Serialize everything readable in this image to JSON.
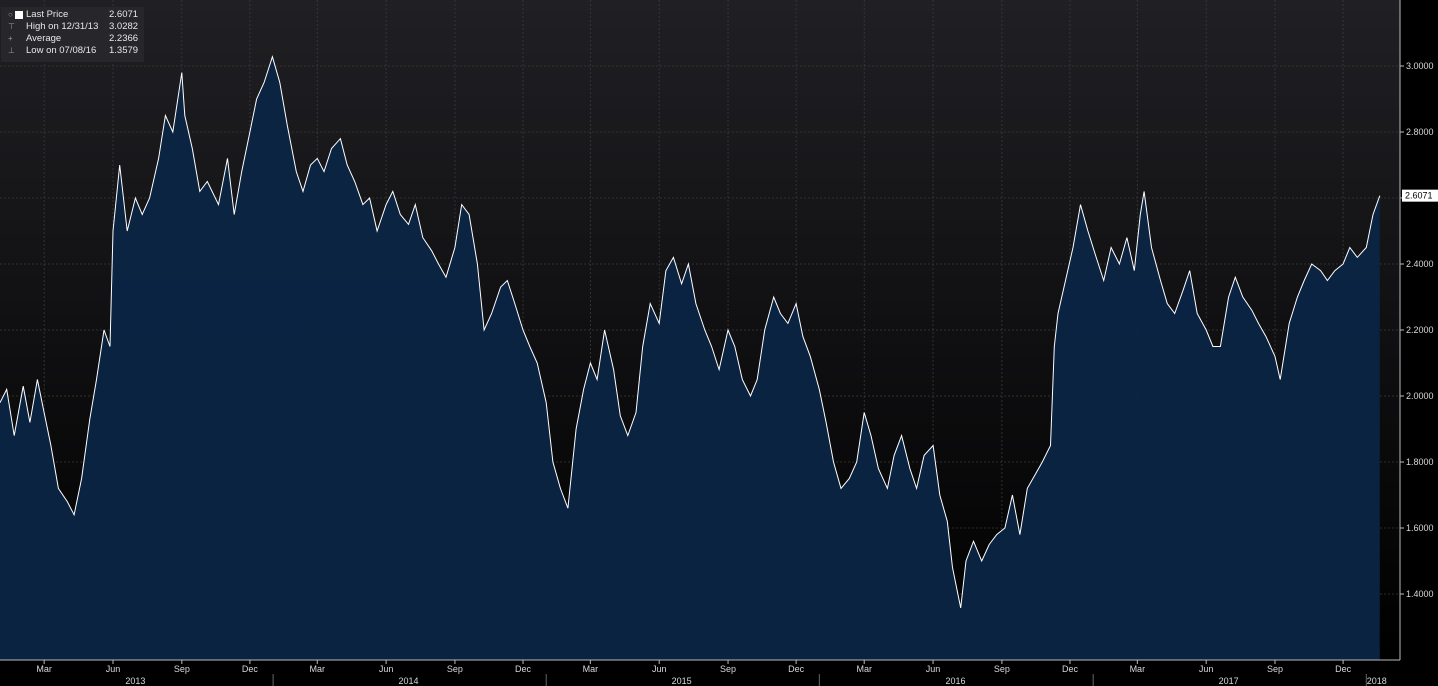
{
  "legend": {
    "last_label": "Last Price",
    "last_value": "2.6071",
    "high_label": "High on 12/31/13",
    "high_value": "3.0282",
    "avg_label": "Average",
    "avg_value": "2.2366",
    "low_label": "Low on 07/08/16",
    "low_value": "1.3579"
  },
  "last_price_tag": "2.6071",
  "colors": {
    "background": "#000000",
    "line": "#ffffff",
    "area": "#0b2545",
    "grid": "#3a3a3a",
    "tag_bg": "#ffffff"
  },
  "chart_data": {
    "type": "area",
    "title": "",
    "xlabel": "",
    "ylabel": "",
    "ylim": [
      1.2,
      3.2
    ],
    "grid": true,
    "legend_position": "top-left",
    "y_ticks": [
      "1.4000",
      "1.6000",
      "1.8000",
      "2.0000",
      "2.2000",
      "2.4000",
      "2.6000",
      "2.8000",
      "3.0000"
    ],
    "x_month_ticks": [
      {
        "label": "Mar",
        "date": "2013-03-01"
      },
      {
        "label": "Jun",
        "date": "2013-06-01"
      },
      {
        "label": "Sep",
        "date": "2013-09-01"
      },
      {
        "label": "Dec",
        "date": "2013-12-01"
      },
      {
        "label": "Mar",
        "date": "2014-03-01"
      },
      {
        "label": "Jun",
        "date": "2014-06-01"
      },
      {
        "label": "Sep",
        "date": "2014-09-01"
      },
      {
        "label": "Dec",
        "date": "2014-12-01"
      },
      {
        "label": "Mar",
        "date": "2015-03-01"
      },
      {
        "label": "Jun",
        "date": "2015-06-01"
      },
      {
        "label": "Sep",
        "date": "2015-09-01"
      },
      {
        "label": "Dec",
        "date": "2015-12-01"
      },
      {
        "label": "Mar",
        "date": "2016-03-01"
      },
      {
        "label": "Jun",
        "date": "2016-06-01"
      },
      {
        "label": "Sep",
        "date": "2016-09-01"
      },
      {
        "label": "Dec",
        "date": "2016-12-01"
      },
      {
        "label": "Mar",
        "date": "2017-03-01"
      },
      {
        "label": "Jun",
        "date": "2017-06-01"
      },
      {
        "label": "Sep",
        "date": "2017-09-01"
      },
      {
        "label": "Dec",
        "date": "2017-12-01"
      }
    ],
    "x_year_labels": [
      {
        "label": "2013",
        "date": "2013-07-01"
      },
      {
        "label": "2014",
        "date": "2014-07-01"
      },
      {
        "label": "2015",
        "date": "2015-07-01"
      },
      {
        "label": "2016",
        "date": "2016-07-01"
      },
      {
        "label": "2017",
        "date": "2017-07-01"
      },
      {
        "label": "2018",
        "date": "2018-01-15"
      }
    ],
    "x_range": [
      "2013-01-01",
      "2018-01-22"
    ],
    "series": [
      {
        "points": [
          [
            "2013-01-01",
            1.98
          ],
          [
            "2013-01-10",
            2.02
          ],
          [
            "2013-01-20",
            1.88
          ],
          [
            "2013-02-01",
            2.03
          ],
          [
            "2013-02-10",
            1.92
          ],
          [
            "2013-02-20",
            2.05
          ],
          [
            "2013-03-01",
            1.95
          ],
          [
            "2013-03-10",
            1.85
          ],
          [
            "2013-03-20",
            1.72
          ],
          [
            "2013-04-01",
            1.68
          ],
          [
            "2013-04-10",
            1.64
          ],
          [
            "2013-04-20",
            1.75
          ],
          [
            "2013-05-01",
            1.93
          ],
          [
            "2013-05-10",
            2.05
          ],
          [
            "2013-05-20",
            2.2
          ],
          [
            "2013-05-28",
            2.15
          ],
          [
            "2013-06-01",
            2.5
          ],
          [
            "2013-06-10",
            2.7
          ],
          [
            "2013-06-20",
            2.5
          ],
          [
            "2013-07-01",
            2.6
          ],
          [
            "2013-07-10",
            2.55
          ],
          [
            "2013-07-20",
            2.6
          ],
          [
            "2013-08-01",
            2.72
          ],
          [
            "2013-08-10",
            2.85
          ],
          [
            "2013-08-20",
            2.8
          ],
          [
            "2013-09-01",
            2.98
          ],
          [
            "2013-09-05",
            2.85
          ],
          [
            "2013-09-15",
            2.75
          ],
          [
            "2013-09-25",
            2.62
          ],
          [
            "2013-10-05",
            2.65
          ],
          [
            "2013-10-20",
            2.58
          ],
          [
            "2013-11-01",
            2.72
          ],
          [
            "2013-11-10",
            2.55
          ],
          [
            "2013-11-20",
            2.68
          ],
          [
            "2013-12-01",
            2.8
          ],
          [
            "2013-12-10",
            2.9
          ],
          [
            "2013-12-20",
            2.95
          ],
          [
            "2013-12-31",
            3.0282
          ],
          [
            "2014-01-10",
            2.95
          ],
          [
            "2014-01-20",
            2.82
          ],
          [
            "2014-02-01",
            2.68
          ],
          [
            "2014-02-10",
            2.62
          ],
          [
            "2014-02-20",
            2.7
          ],
          [
            "2014-03-01",
            2.72
          ],
          [
            "2014-03-10",
            2.68
          ],
          [
            "2014-03-20",
            2.75
          ],
          [
            "2014-04-01",
            2.78
          ],
          [
            "2014-04-10",
            2.7
          ],
          [
            "2014-04-20",
            2.65
          ],
          [
            "2014-05-01",
            2.58
          ],
          [
            "2014-05-10",
            2.6
          ],
          [
            "2014-05-20",
            2.5
          ],
          [
            "2014-06-01",
            2.58
          ],
          [
            "2014-06-10",
            2.62
          ],
          [
            "2014-06-20",
            2.55
          ],
          [
            "2014-07-01",
            2.52
          ],
          [
            "2014-07-10",
            2.58
          ],
          [
            "2014-07-20",
            2.48
          ],
          [
            "2014-08-01",
            2.44
          ],
          [
            "2014-08-10",
            2.4
          ],
          [
            "2014-08-20",
            2.36
          ],
          [
            "2014-09-01",
            2.45
          ],
          [
            "2014-09-10",
            2.58
          ],
          [
            "2014-09-20",
            2.55
          ],
          [
            "2014-10-01",
            2.4
          ],
          [
            "2014-10-10",
            2.2
          ],
          [
            "2014-10-20",
            2.25
          ],
          [
            "2014-11-01",
            2.33
          ],
          [
            "2014-11-10",
            2.35
          ],
          [
            "2014-11-20",
            2.28
          ],
          [
            "2014-12-01",
            2.2
          ],
          [
            "2014-12-10",
            2.15
          ],
          [
            "2014-12-20",
            2.1
          ],
          [
            "2015-01-01",
            1.98
          ],
          [
            "2015-01-10",
            1.8
          ],
          [
            "2015-01-20",
            1.72
          ],
          [
            "2015-01-30",
            1.66
          ],
          [
            "2015-02-10",
            1.9
          ],
          [
            "2015-02-20",
            2.02
          ],
          [
            "2015-03-01",
            2.1
          ],
          [
            "2015-03-10",
            2.05
          ],
          [
            "2015-03-20",
            2.2
          ],
          [
            "2015-04-01",
            2.08
          ],
          [
            "2015-04-10",
            1.94
          ],
          [
            "2015-04-20",
            1.88
          ],
          [
            "2015-05-01",
            1.95
          ],
          [
            "2015-05-10",
            2.15
          ],
          [
            "2015-05-20",
            2.28
          ],
          [
            "2015-06-01",
            2.22
          ],
          [
            "2015-06-10",
            2.38
          ],
          [
            "2015-06-20",
            2.42
          ],
          [
            "2015-07-01",
            2.34
          ],
          [
            "2015-07-10",
            2.4
          ],
          [
            "2015-07-20",
            2.28
          ],
          [
            "2015-08-01",
            2.2
          ],
          [
            "2015-08-10",
            2.15
          ],
          [
            "2015-08-20",
            2.08
          ],
          [
            "2015-09-01",
            2.2
          ],
          [
            "2015-09-10",
            2.15
          ],
          [
            "2015-09-20",
            2.05
          ],
          [
            "2015-10-01",
            2.0
          ],
          [
            "2015-10-10",
            2.05
          ],
          [
            "2015-10-20",
            2.2
          ],
          [
            "2015-11-01",
            2.3
          ],
          [
            "2015-11-10",
            2.25
          ],
          [
            "2015-11-20",
            2.22
          ],
          [
            "2015-12-01",
            2.28
          ],
          [
            "2015-12-10",
            2.18
          ],
          [
            "2015-12-20",
            2.12
          ],
          [
            "2016-01-01",
            2.02
          ],
          [
            "2016-01-10",
            1.92
          ],
          [
            "2016-01-20",
            1.8
          ],
          [
            "2016-01-30",
            1.72
          ],
          [
            "2016-02-10",
            1.75
          ],
          [
            "2016-02-20",
            1.8
          ],
          [
            "2016-03-01",
            1.95
          ],
          [
            "2016-03-10",
            1.88
          ],
          [
            "2016-03-20",
            1.78
          ],
          [
            "2016-04-01",
            1.72
          ],
          [
            "2016-04-10",
            1.82
          ],
          [
            "2016-04-20",
            1.88
          ],
          [
            "2016-05-01",
            1.78
          ],
          [
            "2016-05-10",
            1.72
          ],
          [
            "2016-05-20",
            1.82
          ],
          [
            "2016-06-01",
            1.85
          ],
          [
            "2016-06-10",
            1.7
          ],
          [
            "2016-06-20",
            1.62
          ],
          [
            "2016-06-27",
            1.48
          ],
          [
            "2016-07-08",
            1.3579
          ],
          [
            "2016-07-15",
            1.5
          ],
          [
            "2016-07-25",
            1.56
          ],
          [
            "2016-08-05",
            1.5
          ],
          [
            "2016-08-15",
            1.55
          ],
          [
            "2016-08-25",
            1.58
          ],
          [
            "2016-09-05",
            1.6
          ],
          [
            "2016-09-15",
            1.7
          ],
          [
            "2016-09-25",
            1.58
          ],
          [
            "2016-10-05",
            1.72
          ],
          [
            "2016-10-15",
            1.76
          ],
          [
            "2016-10-25",
            1.8
          ],
          [
            "2016-11-05",
            1.85
          ],
          [
            "2016-11-10",
            2.15
          ],
          [
            "2016-11-15",
            2.25
          ],
          [
            "2016-11-25",
            2.35
          ],
          [
            "2016-12-05",
            2.45
          ],
          [
            "2016-12-15",
            2.58
          ],
          [
            "2016-12-25",
            2.5
          ],
          [
            "2017-01-05",
            2.42
          ],
          [
            "2017-01-15",
            2.35
          ],
          [
            "2017-01-25",
            2.45
          ],
          [
            "2017-02-05",
            2.4
          ],
          [
            "2017-02-15",
            2.48
          ],
          [
            "2017-02-25",
            2.38
          ],
          [
            "2017-03-05",
            2.55
          ],
          [
            "2017-03-10",
            2.62
          ],
          [
            "2017-03-20",
            2.45
          ],
          [
            "2017-04-01",
            2.35
          ],
          [
            "2017-04-10",
            2.28
          ],
          [
            "2017-04-20",
            2.25
          ],
          [
            "2017-05-01",
            2.32
          ],
          [
            "2017-05-10",
            2.38
          ],
          [
            "2017-05-20",
            2.25
          ],
          [
            "2017-06-01",
            2.2
          ],
          [
            "2017-06-10",
            2.15
          ],
          [
            "2017-06-20",
            2.15
          ],
          [
            "2017-07-01",
            2.3
          ],
          [
            "2017-07-10",
            2.36
          ],
          [
            "2017-07-20",
            2.3
          ],
          [
            "2017-08-01",
            2.26
          ],
          [
            "2017-08-10",
            2.22
          ],
          [
            "2017-08-20",
            2.18
          ],
          [
            "2017-09-01",
            2.12
          ],
          [
            "2017-09-08",
            2.05
          ],
          [
            "2017-09-20",
            2.22
          ],
          [
            "2017-10-01",
            2.3
          ],
          [
            "2017-10-10",
            2.35
          ],
          [
            "2017-10-20",
            2.4
          ],
          [
            "2017-11-01",
            2.38
          ],
          [
            "2017-11-10",
            2.35
          ],
          [
            "2017-11-20",
            2.38
          ],
          [
            "2017-12-01",
            2.4
          ],
          [
            "2017-12-10",
            2.45
          ],
          [
            "2017-12-20",
            2.42
          ],
          [
            "2018-01-01",
            2.45
          ],
          [
            "2018-01-10",
            2.55
          ],
          [
            "2018-01-19",
            2.6071
          ]
        ]
      }
    ]
  }
}
